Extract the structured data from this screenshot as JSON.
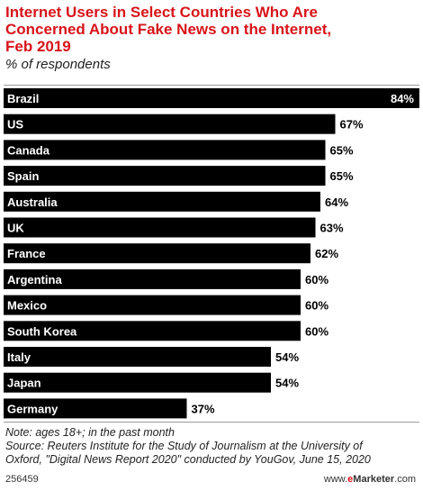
{
  "title": "Internet Users in Select Countries Who Are Concerned About Fake News on the Internet, Feb 2019",
  "title_lines": [
    "Internet Users in Select Countries Who Are",
    "Concerned About Fake News on the Internet,",
    "Feb 2019"
  ],
  "subtitle": "% of respondents",
  "chart_data": {
    "type": "bar",
    "orientation": "horizontal",
    "title": "Internet Users in Select Countries Who Are Concerned About Fake News on the Internet, Feb 2019",
    "subtitle": "% of respondents",
    "categories": [
      "Brazil",
      "US",
      "Canada",
      "Spain",
      "Australia",
      "UK",
      "France",
      "Argentina",
      "Mexico",
      "South Korea",
      "Italy",
      "Japan",
      "Germany"
    ],
    "values": [
      84,
      67,
      65,
      65,
      64,
      63,
      62,
      60,
      60,
      60,
      54,
      54,
      37
    ],
    "value_labels": [
      "84%",
      "67%",
      "65%",
      "65%",
      "64%",
      "63%",
      "62%",
      "60%",
      "60%",
      "60%",
      "54%",
      "54%",
      "37%"
    ],
    "xlim": [
      0,
      84
    ],
    "grid": false,
    "bar_color": "#000000"
  },
  "notes": {
    "note": "Note: ages 18+; in the past month",
    "source_lines": [
      "Source: Reuters Institute for the Study of Journalism at the University of",
      "Oxford, \"Digital News Report 2020\" conducted by YouGov, June 15, 2020"
    ]
  },
  "footer": {
    "chart_id": "256459",
    "brand_www": "www.",
    "brand_e": "e",
    "brand_name": "Marketer",
    "brand_suffix": ".com"
  },
  "colors": {
    "title": "#d7141a",
    "bar": "#000000",
    "brand_accent": "#d7141a"
  }
}
